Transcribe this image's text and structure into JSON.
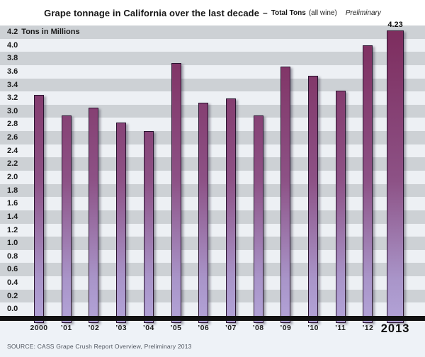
{
  "title": {
    "main": "Grape tonnage in California over the last decade",
    "separator": "–",
    "series": "Total Tons",
    "series_note": "(all wine)",
    "status": "Preliminary"
  },
  "y_axis": {
    "unit_label": "Tons in Millions",
    "ticks": [
      "4.2",
      "4.0",
      "3.8",
      "3.6",
      "3.4",
      "3.2",
      "3.0",
      "2.8",
      "2.6",
      "2.4",
      "2.2",
      "2.0",
      "1.8",
      "1.6",
      "1.4",
      "1.2",
      "1.0",
      "0.8",
      "0.6",
      "0.4",
      "0.2",
      "0.0"
    ]
  },
  "chart_data": {
    "type": "bar",
    "title": "Grape tonnage in California over the last decade – Total Tons (all wine), Preliminary",
    "xlabel": "",
    "ylabel": "Tons in Millions",
    "ylim": [
      0,
      4.2
    ],
    "tick_step": 0.2,
    "grid": "alternating horizontal bands, 0.2 step",
    "legend_position": "none",
    "categories": [
      "2000",
      "’01",
      "’02",
      "’03",
      "’04",
      "’05",
      "’06",
      "’07",
      "’08",
      "’09",
      "’10",
      "’11",
      "’12",
      "2013"
    ],
    "values": [
      3.25,
      2.94,
      3.05,
      2.83,
      2.7,
      3.73,
      3.13,
      3.19,
      2.94,
      3.68,
      3.54,
      3.31,
      4.0,
      4.23
    ],
    "annotations": [
      {
        "category": "2013",
        "label": "4.23"
      }
    ]
  },
  "source": "SOURCE: CASS Grape Crush Report Overview, Preliminary 2013",
  "colors": {
    "bar_gradient_top": "#7d2c5d",
    "bar_gradient_mid": "#8d5286",
    "bar_gradient_low": "#a995c9",
    "bar_gradient_bottom": "#b3a4d8",
    "bar_outline": "#2a1430",
    "stripe_gray": "#cdd1d5",
    "stripe_light": "#edf0f4",
    "baseline": "#111111",
    "footer_bg": "#eef2f7",
    "header_bg": "#ffffff"
  }
}
